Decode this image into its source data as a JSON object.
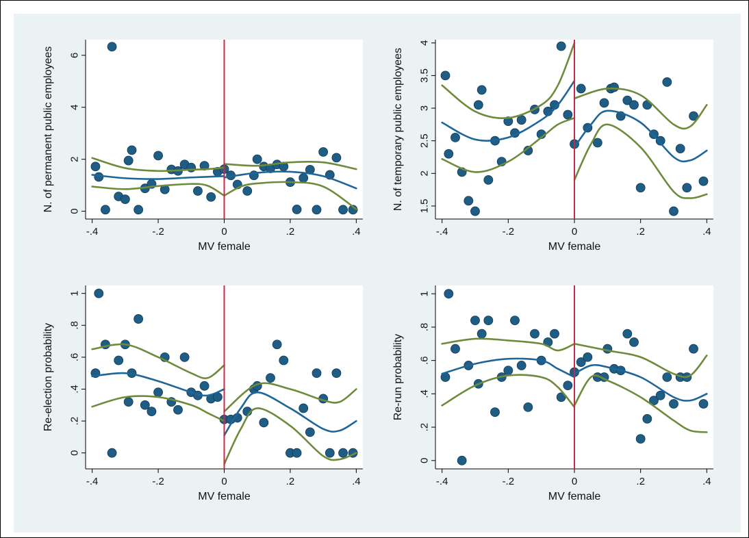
{
  "colors": {
    "page_background": "#ffffff",
    "outer_background": "#eaf2f3",
    "plot_background": "#ffffff",
    "point_color": "#1f5d84",
    "point_edge": "#0e3a58",
    "fit_line": "#1e6598",
    "ci_line": "#6e8a3b",
    "cutoff_line": "#c8294b"
  },
  "chart_data": [
    {
      "type": "scatter",
      "xlabel": "MV female",
      "ylabel": "N. of permanent public employees",
      "xlim": [
        -0.42,
        0.42
      ],
      "ylim": [
        -0.3,
        6.6
      ],
      "xticks": [
        -0.4,
        -0.2,
        0,
        0.2,
        0.4
      ],
      "xtick_labels": [
        "-.4",
        "-.2",
        "0",
        ".2",
        ".4"
      ],
      "yticks": [
        0,
        2,
        4,
        6
      ],
      "ytick_labels": [
        "0",
        "2",
        "4",
        "6"
      ],
      "cutoff": 0,
      "points": [
        [
          -0.39,
          1.72
        ],
        [
          -0.38,
          1.32
        ],
        [
          -0.36,
          0.06
        ],
        [
          -0.34,
          6.33
        ],
        [
          -0.32,
          0.57
        ],
        [
          -0.3,
          0.46
        ],
        [
          -0.29,
          1.95
        ],
        [
          -0.28,
          2.35
        ],
        [
          -0.26,
          0.06
        ],
        [
          -0.24,
          0.88
        ],
        [
          -0.22,
          1.05
        ],
        [
          -0.2,
          2.14
        ],
        [
          -0.18,
          0.84
        ],
        [
          -0.16,
          1.61
        ],
        [
          -0.14,
          1.55
        ],
        [
          -0.12,
          1.8
        ],
        [
          -0.1,
          1.68
        ],
        [
          -0.08,
          0.78
        ],
        [
          -0.06,
          1.75
        ],
        [
          -0.04,
          0.55
        ],
        [
          -0.02,
          1.52
        ],
        [
          0.0,
          1.62
        ],
        [
          0.02,
          1.38
        ],
        [
          0.04,
          1.03
        ],
        [
          0.07,
          0.78
        ],
        [
          0.09,
          1.38
        ],
        [
          0.1,
          2.0
        ],
        [
          0.12,
          1.72
        ],
        [
          0.14,
          1.65
        ],
        [
          0.16,
          1.8
        ],
        [
          0.18,
          1.72
        ],
        [
          0.2,
          1.12
        ],
        [
          0.22,
          0.07
        ],
        [
          0.24,
          1.28
        ],
        [
          0.26,
          1.6
        ],
        [
          0.28,
          0.06
        ],
        [
          0.3,
          2.28
        ],
        [
          0.32,
          1.4
        ],
        [
          0.34,
          2.06
        ],
        [
          0.36,
          0.06
        ],
        [
          0.39,
          0.06
        ]
      ],
      "fit_left": [
        [
          -0.4,
          1.4
        ],
        [
          -0.3,
          1.27
        ],
        [
          -0.2,
          1.24
        ],
        [
          -0.1,
          1.3
        ],
        [
          0.0,
          1.35
        ]
      ],
      "ci_upper_left": [
        [
          -0.4,
          2.05
        ],
        [
          -0.3,
          1.66
        ],
        [
          -0.2,
          1.55
        ],
        [
          -0.1,
          1.6
        ],
        [
          -0.05,
          1.62
        ],
        [
          0.0,
          1.68
        ]
      ],
      "ci_lower_left": [
        [
          -0.4,
          0.95
        ],
        [
          -0.3,
          0.85
        ],
        [
          -0.2,
          0.97
        ],
        [
          -0.1,
          1.05
        ],
        [
          -0.05,
          0.98
        ],
        [
          0.0,
          0.6
        ]
      ],
      "fit_right": [
        [
          0.0,
          1.3
        ],
        [
          0.1,
          1.48
        ],
        [
          0.2,
          1.52
        ],
        [
          0.3,
          1.35
        ],
        [
          0.4,
          0.88
        ]
      ],
      "ci_upper_right": [
        [
          0.0,
          1.82
        ],
        [
          0.1,
          1.75
        ],
        [
          0.2,
          1.88
        ],
        [
          0.3,
          1.88
        ],
        [
          0.4,
          1.62
        ]
      ],
      "ci_lower_right": [
        [
          0.0,
          0.6
        ],
        [
          0.05,
          0.95
        ],
        [
          0.1,
          1.07
        ],
        [
          0.2,
          1.12
        ],
        [
          0.3,
          0.95
        ],
        [
          0.4,
          0.08
        ]
      ]
    },
    {
      "type": "scatter",
      "xlabel": "MV female",
      "ylabel": "N. of temporary public employees",
      "xlim": [
        -0.42,
        0.42
      ],
      "ylim": [
        1.3,
        4.05
      ],
      "xticks": [
        -0.4,
        -0.2,
        0,
        0.2,
        0.4
      ],
      "xtick_labels": [
        "-.4",
        "-.2",
        "0",
        ".2",
        ".4"
      ],
      "yticks": [
        1.5,
        2,
        2.5,
        3,
        3.5,
        4
      ],
      "ytick_labels": [
        "1.5",
        "2",
        "2.5",
        "3",
        "3.5",
        "4"
      ],
      "cutoff": 0,
      "points": [
        [
          -0.39,
          3.5
        ],
        [
          -0.38,
          2.3
        ],
        [
          -0.36,
          2.55
        ],
        [
          -0.34,
          2.02
        ],
        [
          -0.32,
          1.58
        ],
        [
          -0.3,
          1.42
        ],
        [
          -0.29,
          3.05
        ],
        [
          -0.28,
          3.28
        ],
        [
          -0.26,
          1.9
        ],
        [
          -0.24,
          2.5
        ],
        [
          -0.22,
          2.18
        ],
        [
          -0.2,
          2.8
        ],
        [
          -0.18,
          2.62
        ],
        [
          -0.16,
          2.82
        ],
        [
          -0.14,
          2.35
        ],
        [
          -0.12,
          2.98
        ],
        [
          -0.1,
          2.6
        ],
        [
          -0.08,
          2.95
        ],
        [
          -0.06,
          3.05
        ],
        [
          -0.04,
          3.95
        ],
        [
          -0.02,
          2.9
        ],
        [
          0.0,
          2.45
        ],
        [
          0.02,
          3.3
        ],
        [
          0.04,
          2.7
        ],
        [
          0.07,
          2.47
        ],
        [
          0.09,
          3.08
        ],
        [
          0.11,
          3.3
        ],
        [
          0.12,
          3.32
        ],
        [
          0.14,
          2.88
        ],
        [
          0.16,
          3.12
        ],
        [
          0.18,
          3.05
        ],
        [
          0.2,
          1.78
        ],
        [
          0.22,
          3.05
        ],
        [
          0.24,
          2.6
        ],
        [
          0.26,
          2.5
        ],
        [
          0.28,
          3.4
        ],
        [
          0.3,
          1.42
        ],
        [
          0.32,
          2.38
        ],
        [
          0.34,
          1.78
        ],
        [
          0.36,
          2.88
        ],
        [
          0.39,
          1.88
        ]
      ],
      "fit_left": [
        [
          -0.4,
          2.78
        ],
        [
          -0.3,
          2.52
        ],
        [
          -0.2,
          2.55
        ],
        [
          -0.1,
          2.82
        ],
        [
          -0.05,
          3.05
        ],
        [
          0.0,
          3.42
        ]
      ],
      "ci_upper_left": [
        [
          -0.4,
          3.35
        ],
        [
          -0.3,
          2.95
        ],
        [
          -0.2,
          2.85
        ],
        [
          -0.1,
          3.05
        ],
        [
          -0.05,
          3.35
        ],
        [
          0.0,
          4.0
        ]
      ],
      "ci_lower_left": [
        [
          -0.4,
          2.22
        ],
        [
          -0.3,
          2.02
        ],
        [
          -0.2,
          2.18
        ],
        [
          -0.1,
          2.55
        ],
        [
          -0.05,
          2.75
        ],
        [
          0.0,
          2.85
        ]
      ],
      "fit_right": [
        [
          0.0,
          2.4
        ],
        [
          0.05,
          2.75
        ],
        [
          0.1,
          2.96
        ],
        [
          0.2,
          2.78
        ],
        [
          0.3,
          2.25
        ],
        [
          0.35,
          2.2
        ],
        [
          0.4,
          2.35
        ]
      ],
      "ci_upper_right": [
        [
          0.0,
          3.15
        ],
        [
          0.1,
          3.3
        ],
        [
          0.2,
          3.2
        ],
        [
          0.3,
          2.75
        ],
        [
          0.35,
          2.72
        ],
        [
          0.4,
          3.05
        ]
      ],
      "ci_lower_right": [
        [
          0.0,
          1.9
        ],
        [
          0.05,
          2.45
        ],
        [
          0.1,
          2.75
        ],
        [
          0.2,
          2.4
        ],
        [
          0.3,
          1.72
        ],
        [
          0.35,
          1.62
        ],
        [
          0.4,
          1.68
        ]
      ]
    },
    {
      "type": "scatter",
      "xlabel": "MV female",
      "ylabel": "Re-election probability",
      "xlim": [
        -0.42,
        0.42
      ],
      "ylim": [
        -0.1,
        1.05
      ],
      "xticks": [
        -0.4,
        -0.2,
        0,
        0.2,
        0.4
      ],
      "xtick_labels": [
        "-.4",
        "-.2",
        "0",
        ".2",
        ".4"
      ],
      "yticks": [
        0,
        0.2,
        0.4,
        0.6,
        0.8,
        1
      ],
      "ytick_labels": [
        "0",
        ".2",
        ".4",
        ".6",
        ".8",
        "1"
      ],
      "cutoff": 0,
      "points": [
        [
          -0.39,
          0.5
        ],
        [
          -0.38,
          1.0
        ],
        [
          -0.36,
          0.68
        ],
        [
          -0.34,
          0.0
        ],
        [
          -0.32,
          0.58
        ],
        [
          -0.3,
          0.68
        ],
        [
          -0.29,
          0.32
        ],
        [
          -0.28,
          0.5
        ],
        [
          -0.26,
          0.84
        ],
        [
          -0.24,
          0.3
        ],
        [
          -0.22,
          0.26
        ],
        [
          -0.2,
          0.38
        ],
        [
          -0.18,
          0.6
        ],
        [
          -0.16,
          0.32
        ],
        [
          -0.14,
          0.27
        ],
        [
          -0.12,
          0.6
        ],
        [
          -0.1,
          0.38
        ],
        [
          -0.08,
          0.36
        ],
        [
          -0.06,
          0.42
        ],
        [
          -0.04,
          0.34
        ],
        [
          -0.02,
          0.35
        ],
        [
          0.0,
          0.21
        ],
        [
          0.02,
          0.21
        ],
        [
          0.04,
          0.22
        ],
        [
          0.07,
          0.26
        ],
        [
          0.09,
          0.4
        ],
        [
          0.1,
          0.42
        ],
        [
          0.12,
          0.19
        ],
        [
          0.14,
          0.47
        ],
        [
          0.16,
          0.68
        ],
        [
          0.18,
          0.58
        ],
        [
          0.2,
          0.0
        ],
        [
          0.22,
          0.0
        ],
        [
          0.24,
          0.28
        ],
        [
          0.26,
          0.13
        ],
        [
          0.28,
          0.5
        ],
        [
          0.3,
          0.34
        ],
        [
          0.32,
          0.0
        ],
        [
          0.34,
          0.5
        ],
        [
          0.36,
          0.0
        ],
        [
          0.39,
          0.0
        ]
      ],
      "fit_left": [
        [
          -0.4,
          0.48
        ],
        [
          -0.3,
          0.5
        ],
        [
          -0.2,
          0.45
        ],
        [
          -0.1,
          0.38
        ],
        [
          -0.05,
          0.36
        ],
        [
          0.0,
          0.4
        ]
      ],
      "ci_upper_left": [
        [
          -0.4,
          0.65
        ],
        [
          -0.3,
          0.68
        ],
        [
          -0.2,
          0.6
        ],
        [
          -0.1,
          0.5
        ],
        [
          -0.05,
          0.47
        ],
        [
          0.0,
          0.55
        ]
      ],
      "ci_lower_left": [
        [
          -0.4,
          0.29
        ],
        [
          -0.3,
          0.35
        ],
        [
          -0.2,
          0.35
        ],
        [
          -0.1,
          0.3
        ],
        [
          -0.05,
          0.25
        ],
        [
          0.0,
          0.2
        ]
      ],
      "fit_right": [
        [
          0.0,
          0.11
        ],
        [
          0.05,
          0.28
        ],
        [
          0.1,
          0.38
        ],
        [
          0.2,
          0.28
        ],
        [
          0.3,
          0.15
        ],
        [
          0.35,
          0.14
        ],
        [
          0.4,
          0.2
        ]
      ],
      "ci_upper_right": [
        [
          0.0,
          0.26
        ],
        [
          0.1,
          0.43
        ],
        [
          0.2,
          0.4
        ],
        [
          0.3,
          0.33
        ],
        [
          0.35,
          0.32
        ],
        [
          0.4,
          0.4
        ]
      ],
      "ci_lower_right": [
        [
          0.0,
          -0.07
        ],
        [
          0.05,
          0.15
        ],
        [
          0.1,
          0.28
        ],
        [
          0.2,
          0.17
        ],
        [
          0.3,
          -0.02
        ],
        [
          0.35,
          -0.04
        ],
        [
          0.4,
          0.0
        ]
      ]
    },
    {
      "type": "scatter",
      "xlabel": "MV female",
      "ylabel": "Re-run probability",
      "xlim": [
        -0.42,
        0.42
      ],
      "ylim": [
        -0.05,
        1.05
      ],
      "xticks": [
        -0.4,
        -0.2,
        0,
        0.2,
        0.4
      ],
      "xtick_labels": [
        "-.4",
        "-.2",
        "0",
        ".2",
        ".4"
      ],
      "yticks": [
        0,
        0.2,
        0.4,
        0.6,
        0.8,
        1
      ],
      "ytick_labels": [
        "0",
        ".2",
        ".4",
        ".6",
        ".8",
        "1"
      ],
      "cutoff": 0,
      "points": [
        [
          -0.39,
          0.5
        ],
        [
          -0.38,
          1.0
        ],
        [
          -0.36,
          0.67
        ],
        [
          -0.34,
          0.0
        ],
        [
          -0.32,
          0.57
        ],
        [
          -0.3,
          0.84
        ],
        [
          -0.29,
          0.46
        ],
        [
          -0.28,
          0.76
        ],
        [
          -0.26,
          0.84
        ],
        [
          -0.24,
          0.29
        ],
        [
          -0.22,
          0.5
        ],
        [
          -0.2,
          0.54
        ],
        [
          -0.18,
          0.84
        ],
        [
          -0.16,
          0.57
        ],
        [
          -0.14,
          0.32
        ],
        [
          -0.12,
          0.76
        ],
        [
          -0.1,
          0.6
        ],
        [
          -0.08,
          0.71
        ],
        [
          -0.06,
          0.76
        ],
        [
          -0.04,
          0.38
        ],
        [
          -0.02,
          0.45
        ],
        [
          0.0,
          0.53
        ],
        [
          0.02,
          0.59
        ],
        [
          0.04,
          0.62
        ],
        [
          0.07,
          0.5
        ],
        [
          0.09,
          0.5
        ],
        [
          0.1,
          0.67
        ],
        [
          0.12,
          0.55
        ],
        [
          0.14,
          0.54
        ],
        [
          0.16,
          0.76
        ],
        [
          0.18,
          0.71
        ],
        [
          0.2,
          0.13
        ],
        [
          0.22,
          0.25
        ],
        [
          0.24,
          0.36
        ],
        [
          0.26,
          0.39
        ],
        [
          0.28,
          0.5
        ],
        [
          0.3,
          0.34
        ],
        [
          0.32,
          0.5
        ],
        [
          0.34,
          0.5
        ],
        [
          0.36,
          0.67
        ],
        [
          0.39,
          0.34
        ]
      ],
      "fit_left": [
        [
          -0.4,
          0.52
        ],
        [
          -0.3,
          0.58
        ],
        [
          -0.2,
          0.61
        ],
        [
          -0.1,
          0.6
        ],
        [
          -0.05,
          0.55
        ],
        [
          0.0,
          0.5
        ]
      ],
      "ci_upper_left": [
        [
          -0.4,
          0.7
        ],
        [
          -0.3,
          0.73
        ],
        [
          -0.2,
          0.72
        ],
        [
          -0.1,
          0.7
        ],
        [
          -0.05,
          0.66
        ],
        [
          0.0,
          0.7
        ]
      ],
      "ci_lower_left": [
        [
          -0.4,
          0.33
        ],
        [
          -0.3,
          0.45
        ],
        [
          -0.2,
          0.51
        ],
        [
          -0.1,
          0.5
        ],
        [
          -0.05,
          0.44
        ],
        [
          0.0,
          0.32
        ]
      ],
      "fit_right": [
        [
          0.0,
          0.52
        ],
        [
          0.05,
          0.57
        ],
        [
          0.1,
          0.56
        ],
        [
          0.2,
          0.5
        ],
        [
          0.3,
          0.38
        ],
        [
          0.35,
          0.36
        ],
        [
          0.4,
          0.4
        ]
      ],
      "ci_upper_right": [
        [
          0.0,
          0.7
        ],
        [
          0.1,
          0.66
        ],
        [
          0.2,
          0.62
        ],
        [
          0.3,
          0.52
        ],
        [
          0.35,
          0.51
        ],
        [
          0.4,
          0.63
        ]
      ],
      "ci_lower_right": [
        [
          0.0,
          0.33
        ],
        [
          0.05,
          0.5
        ],
        [
          0.1,
          0.48
        ],
        [
          0.2,
          0.38
        ],
        [
          0.3,
          0.24
        ],
        [
          0.35,
          0.18
        ],
        [
          0.4,
          0.17
        ]
      ]
    }
  ]
}
